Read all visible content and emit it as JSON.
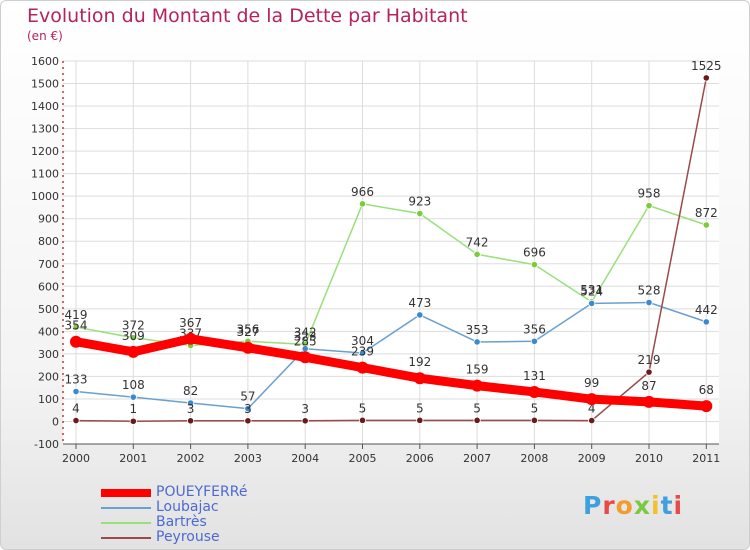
{
  "title": "Evolution du Montant de la Dette par Habitant",
  "subtitle": "(en €)",
  "logo": {
    "text": "Proxiti",
    "colors": [
      "#3fa0e0",
      "#e84a4a",
      "#f29b2f",
      "#7ac943",
      "#f2c12e",
      "#3fa0e0",
      "#e84a4a"
    ]
  },
  "chart_data": {
    "type": "line",
    "x": [
      "2000",
      "2001",
      "2002",
      "2003",
      "2004",
      "2005",
      "2006",
      "2007",
      "2008",
      "2009",
      "2010",
      "2011"
    ],
    "ylim": [
      -100,
      1600
    ],
    "yticks": [
      -100,
      0,
      100,
      200,
      300,
      400,
      500,
      600,
      700,
      800,
      900,
      1000,
      1100,
      1200,
      1300,
      1400,
      1500,
      1600
    ],
    "grid": true,
    "legend_position": "bottom-left",
    "series": [
      {
        "name": "POUEYFERRé",
        "color": "#ff0000",
        "width": 9,
        "values": [
          354,
          309,
          367,
          327,
          285,
          239,
          192,
          159,
          131,
          99,
          87,
          68
        ],
        "labels": [
          "354",
          "309",
          "367",
          "327",
          "285",
          "239",
          "192",
          "159",
          "131",
          "99",
          "87",
          "68"
        ]
      },
      {
        "name": "Loubajac",
        "color": "#6aa0d0",
        "width": 1.5,
        "marker": "#3a8ad0",
        "values": [
          133,
          108,
          82,
          57,
          323,
          304,
          473,
          353,
          356,
          524,
          528,
          442
        ],
        "labels": [
          "133",
          "108",
          "82",
          "57",
          "323",
          "304",
          "473",
          "353",
          "356",
          "524",
          "528",
          "442"
        ]
      },
      {
        "name": "Bartrès",
        "color": "#99e07a",
        "width": 1.5,
        "marker": "#7acc3a",
        "values": [
          419,
          372,
          337,
          356,
          342,
          966,
          923,
          742,
          696,
          531,
          958,
          872
        ],
        "labels": [
          "419",
          "372",
          "337",
          "356",
          "342",
          "966",
          "923",
          "742",
          "696",
          "531",
          "958",
          "872"
        ]
      },
      {
        "name": "Peyrouse",
        "color": "#9a4a4a",
        "width": 1.5,
        "marker": "#6a1a1a",
        "values": [
          4,
          1,
          3,
          3,
          3,
          5,
          5,
          5,
          5,
          4,
          219,
          1525
        ],
        "labels": [
          "4",
          "1",
          "3",
          "3",
          "3",
          "5",
          "5",
          "5",
          "5",
          "4",
          "219",
          "1525"
        ]
      }
    ]
  }
}
